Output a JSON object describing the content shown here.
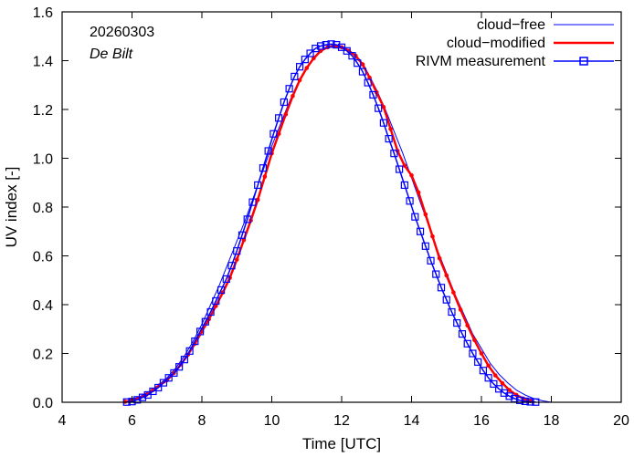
{
  "chart_data": {
    "type": "line",
    "title": "",
    "date_label": "20260303",
    "location_label": "De Bilt",
    "xlabel": "Time  [UTC]",
    "ylabel": "UV index  [-]",
    "xlim": [
      4,
      20
    ],
    "ylim": [
      0,
      1.6
    ],
    "xticks": [
      4,
      6,
      8,
      10,
      12,
      14,
      16,
      18,
      20
    ],
    "yticks": [
      0.0,
      0.2,
      0.4,
      0.6,
      0.8,
      1.0,
      1.2,
      1.4,
      1.6
    ],
    "ytick_labels": [
      "0.0",
      "0.2",
      "0.4",
      "0.6",
      "0.8",
      "1.0",
      "1.2",
      "1.4",
      "1.6"
    ],
    "legend_position": "top-right",
    "colors": {
      "cloud_free": "#0000ff",
      "cloud_modified": "#ff0000",
      "measurement": "#0000ff"
    },
    "series": [
      {
        "name": "cloud−free",
        "style": "thin-line",
        "x": [
          5.8,
          6.0,
          6.25,
          6.5,
          6.75,
          7.0,
          7.25,
          7.5,
          7.75,
          8.0,
          8.25,
          8.5,
          8.75,
          9.0,
          9.25,
          9.5,
          9.75,
          10.0,
          10.25,
          10.5,
          10.75,
          11.0,
          11.25,
          11.5,
          11.75,
          12.0,
          12.25,
          12.5,
          12.75,
          13.0,
          13.25,
          13.5,
          13.75,
          14.0,
          14.25,
          14.5,
          14.75,
          15.0,
          15.25,
          15.5,
          15.75,
          16.0,
          16.25,
          16.5,
          16.75,
          17.0,
          17.25,
          17.5,
          17.75,
          18.0
        ],
        "y": [
          0.003,
          0.012,
          0.025,
          0.045,
          0.07,
          0.1,
          0.14,
          0.19,
          0.25,
          0.32,
          0.4,
          0.48,
          0.57,
          0.66,
          0.75,
          0.85,
          0.95,
          1.05,
          1.14,
          1.23,
          1.31,
          1.37,
          1.42,
          1.45,
          1.465,
          1.46,
          1.44,
          1.4,
          1.35,
          1.28,
          1.2,
          1.11,
          1.02,
          0.92,
          0.82,
          0.72,
          0.62,
          0.53,
          0.44,
          0.36,
          0.28,
          0.22,
          0.16,
          0.115,
          0.08,
          0.05,
          0.03,
          0.015,
          0.006,
          0.0
        ]
      },
      {
        "name": "cloud−modified",
        "style": "thick-line-dots",
        "x": [
          5.8,
          6.0,
          6.2,
          6.4,
          6.6,
          6.8,
          7.0,
          7.2,
          7.4,
          7.6,
          7.8,
          8.0,
          8.2,
          8.4,
          8.6,
          8.8,
          9.0,
          9.2,
          9.4,
          9.6,
          9.8,
          10.0,
          10.2,
          10.4,
          10.6,
          10.8,
          11.0,
          11.2,
          11.4,
          11.6,
          11.8,
          12.0,
          12.2,
          12.4,
          12.6,
          12.8,
          13.0,
          13.2,
          13.4,
          13.6,
          13.8,
          14.0,
          14.2,
          14.4,
          14.6,
          14.8,
          15.0,
          15.2,
          15.4,
          15.6,
          15.8,
          16.0,
          16.2,
          16.4,
          16.6,
          16.8,
          17.0,
          17.2,
          17.4
        ],
        "y": [
          0.002,
          0.008,
          0.016,
          0.03,
          0.05,
          0.07,
          0.09,
          0.12,
          0.155,
          0.195,
          0.24,
          0.29,
          0.34,
          0.395,
          0.45,
          0.51,
          0.585,
          0.665,
          0.745,
          0.83,
          0.925,
          1.02,
          1.1,
          1.18,
          1.255,
          1.32,
          1.37,
          1.41,
          1.44,
          1.455,
          1.46,
          1.455,
          1.44,
          1.42,
          1.385,
          1.33,
          1.27,
          1.21,
          1.12,
          1.03,
          0.97,
          0.93,
          0.86,
          0.77,
          0.68,
          0.59,
          0.52,
          0.45,
          0.38,
          0.315,
          0.255,
          0.2,
          0.15,
          0.11,
          0.078,
          0.05,
          0.03,
          0.015,
          0.005
        ]
      },
      {
        "name": "RIVM measurement",
        "style": "line-squares",
        "x": [
          5.85,
          6.0,
          6.15,
          6.3,
          6.45,
          6.6,
          6.75,
          6.9,
          7.05,
          7.2,
          7.35,
          7.5,
          7.65,
          7.8,
          7.95,
          8.1,
          8.25,
          8.4,
          8.55,
          8.7,
          8.85,
          9.0,
          9.15,
          9.3,
          9.45,
          9.6,
          9.75,
          9.9,
          10.05,
          10.2,
          10.35,
          10.5,
          10.65,
          10.8,
          10.95,
          11.1,
          11.25,
          11.4,
          11.55,
          11.7,
          11.85,
          12.0,
          12.15,
          12.3,
          12.45,
          12.6,
          12.75,
          12.9,
          13.05,
          13.2,
          13.35,
          13.5,
          13.65,
          13.8,
          13.95,
          14.1,
          14.25,
          14.4,
          14.55,
          14.7,
          14.85,
          15.0,
          15.15,
          15.3,
          15.45,
          15.6,
          15.75,
          15.9,
          16.05,
          16.2,
          16.35,
          16.5,
          16.65,
          16.8,
          16.95,
          17.1,
          17.25,
          17.4,
          17.55
        ],
        "y": [
          0.001,
          0.003,
          0.01,
          0.02,
          0.03,
          0.045,
          0.06,
          0.08,
          0.1,
          0.12,
          0.145,
          0.175,
          0.21,
          0.25,
          0.29,
          0.33,
          0.37,
          0.415,
          0.46,
          0.505,
          0.56,
          0.62,
          0.685,
          0.75,
          0.82,
          0.89,
          0.96,
          1.03,
          1.1,
          1.165,
          1.23,
          1.285,
          1.335,
          1.375,
          1.405,
          1.43,
          1.45,
          1.46,
          1.465,
          1.468,
          1.465,
          1.455,
          1.44,
          1.42,
          1.39,
          1.355,
          1.31,
          1.26,
          1.205,
          1.145,
          1.08,
          1.02,
          0.955,
          0.89,
          0.825,
          0.76,
          0.7,
          0.64,
          0.58,
          0.525,
          0.47,
          0.42,
          0.37,
          0.325,
          0.28,
          0.24,
          0.2,
          0.165,
          0.13,
          0.1,
          0.075,
          0.055,
          0.038,
          0.025,
          0.015,
          0.008,
          0.004,
          0.002,
          0.001
        ]
      }
    ]
  }
}
